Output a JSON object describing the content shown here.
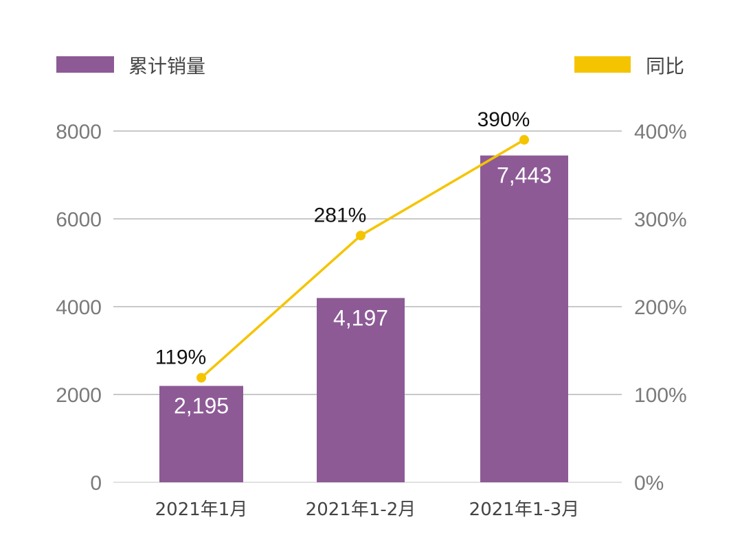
{
  "chart_data": {
    "type": "bar",
    "categories": [
      "2021年1月",
      "2021年1-2月",
      "2021年1-3月"
    ],
    "series": [
      {
        "name": "累计销量",
        "type": "bar",
        "axis": "left",
        "color": "#8d5a96",
        "values": [
          2195,
          4197,
          7443
        ],
        "labels": [
          "2,195",
          "4,197",
          "7,443"
        ]
      },
      {
        "name": "同比",
        "type": "line",
        "axis": "right",
        "color": "#f5c400",
        "values": [
          119,
          281,
          390
        ],
        "labels": [
          "119%",
          "281%",
          "390%"
        ]
      }
    ],
    "y_left": {
      "ylim": [
        0,
        8000
      ],
      "ticks": [
        0,
        2000,
        4000,
        6000,
        8000
      ],
      "tick_labels": [
        "0",
        "2000",
        "4000",
        "6000",
        "8000"
      ]
    },
    "y_right": {
      "ylim": [
        0,
        400
      ],
      "ticks": [
        0,
        100,
        200,
        300,
        400
      ],
      "tick_labels": [
        "0%",
        "100%",
        "200%",
        "300%",
        "400%"
      ]
    },
    "grid": true,
    "legend_position": "top"
  }
}
